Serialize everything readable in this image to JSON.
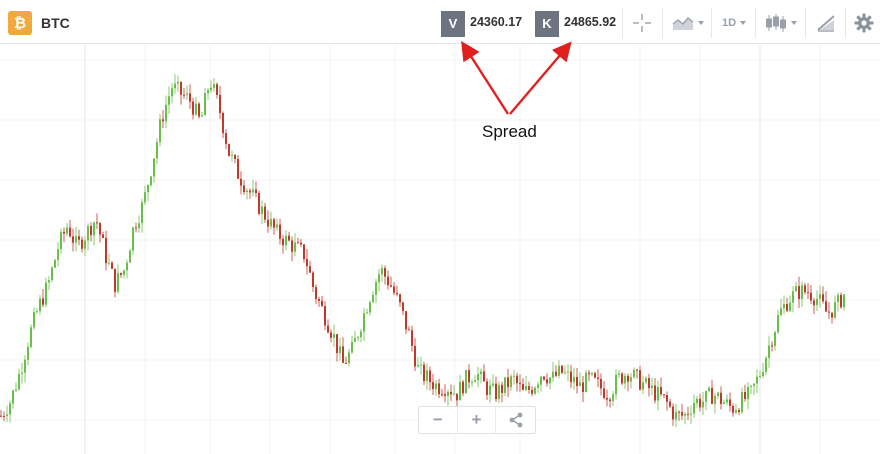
{
  "header": {
    "coin_icon": "bitcoin-icon",
    "symbol": "BTC",
    "sell_tag": "V",
    "sell_price": "24360.17",
    "buy_tag": "K",
    "buy_price": "24865.92",
    "interval": "1D",
    "tools": [
      "crosshair-icon",
      "chart-type-icon",
      "interval-select",
      "candle-style-icon",
      "drawing-tool-icon",
      "settings-gear-icon"
    ]
  },
  "annotation": {
    "label": "Spread"
  },
  "zoom_controls": {
    "zoom_out": "−",
    "zoom_in": "+",
    "share_icon": "share-icon"
  },
  "colors": {
    "up": "#6abf4b",
    "down": "#c0392b",
    "sell_tag_bg": "#6e7380",
    "coin_bg": "#f2a93b",
    "arrow": "#e02020"
  },
  "chart_data": {
    "type": "candlestick",
    "series": [
      {
        "name": "BTC",
        "values": [
          38,
          40,
          44,
          49,
          53,
          56,
          61,
          64,
          61,
          63,
          65,
          60,
          56,
          58,
          64,
          67,
          73,
          79,
          83,
          82,
          81,
          78,
          84,
          80,
          74,
          71,
          69,
          67,
          65,
          63,
          62,
          61,
          60,
          55,
          52,
          49,
          45,
          47,
          51,
          55,
          58,
          56,
          53,
          49,
          44,
          43,
          42,
          42,
          41,
          43,
          44,
          42,
          41,
          42,
          43,
          41,
          42,
          44,
          43,
          44,
          43,
          42,
          43,
          42,
          41,
          43,
          44,
          43,
          42,
          41,
          40,
          38,
          38,
          40,
          40,
          41,
          40,
          39,
          40,
          41,
          44,
          48,
          52,
          54,
          55,
          55,
          54,
          52,
          53,
          55
        ]
      }
    ]
  }
}
